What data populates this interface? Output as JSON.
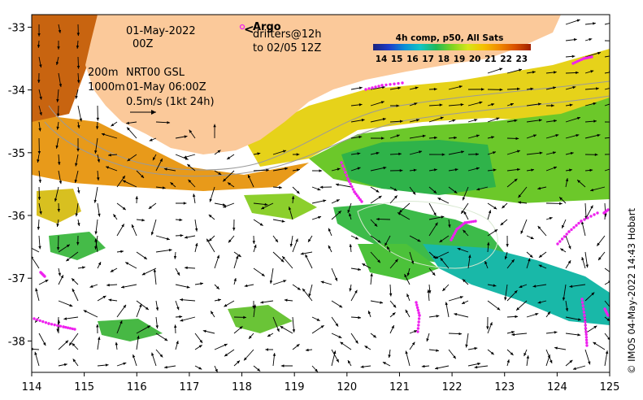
{
  "map": {
    "axes": {
      "x_ticks": [
        "114",
        "115",
        "116",
        "117",
        "118",
        "119",
        "120",
        "121",
        "122",
        "123",
        "124",
        "125"
      ],
      "y_ticks": [
        "-33",
        "-34",
        "-35",
        "-36",
        "-37",
        "-38"
      ],
      "x_range": [
        114,
        125
      ],
      "y_range": [
        -38.5,
        -32.8
      ]
    },
    "annotations": {
      "date": "01-May-2022",
      "time": "00Z",
      "contour_200": "200m",
      "contour_1000": "1000m",
      "product": "NRT00 GSL",
      "product_time": "01-May 06:00Z",
      "scale_label": "0.5m/s (1kt 24h)",
      "argo_label": "Argo",
      "drifters_label": "drifters@12h",
      "drifters_to": "to 02/05 12Z"
    },
    "colorbar": {
      "title": "4h comp, p50, All Sats",
      "ticks": [
        "14",
        "15",
        "16",
        "17",
        "18",
        "19",
        "20",
        "21",
        "22",
        "23"
      ],
      "colors": [
        "#1a237e",
        "#1e3cc8",
        "#0a8fd6",
        "#12c4c4",
        "#22b856",
        "#7ed321",
        "#d6e61a",
        "#f5c000",
        "#f08a00",
        "#d95000",
        "#a02000"
      ]
    },
    "land_color": "#fbc99a",
    "copyright": "© IMOS 04-May-2022 14:43 Hobart"
  }
}
